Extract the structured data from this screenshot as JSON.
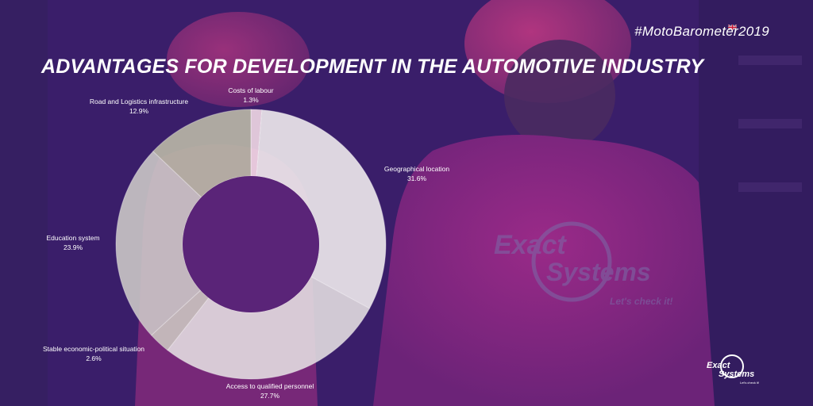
{
  "header": {
    "hashtag": "#MotoBarometer2019",
    "title": "ADVANTAGES FOR DEVELOPMENT IN THE AUTOMOTIVE INDUSTRY"
  },
  "brand": {
    "shirt_logo_line1": "Exact",
    "shirt_logo_line2": "Systems",
    "shirt_tagline": "Let's check it!",
    "corner_logo_line1": "Exact",
    "corner_logo_line2": "Systems",
    "corner_tagline": "Let's check it!"
  },
  "colors": {
    "overlay": "#3a1e6a",
    "accent": "#c0359a",
    "donut_light": "#efe8ee",
    "donut_mid": "#d6ccd4",
    "donut_gray": "#b9b6a8"
  },
  "chart_data": {
    "type": "pie",
    "donut": true,
    "categories": [
      "Costs of labour",
      "Geographical location",
      "Access to qualified personnel",
      "Stable economic-political situation",
      "Education system",
      "Road and Logistics infrastructure"
    ],
    "values": [
      1.3,
      31.6,
      27.7,
      2.6,
      23.9,
      12.9
    ],
    "value_labels": [
      "1.3%",
      "31.6%",
      "27.7%",
      "2.6%",
      "23.9%",
      "12.9%"
    ],
    "unit": "%"
  }
}
